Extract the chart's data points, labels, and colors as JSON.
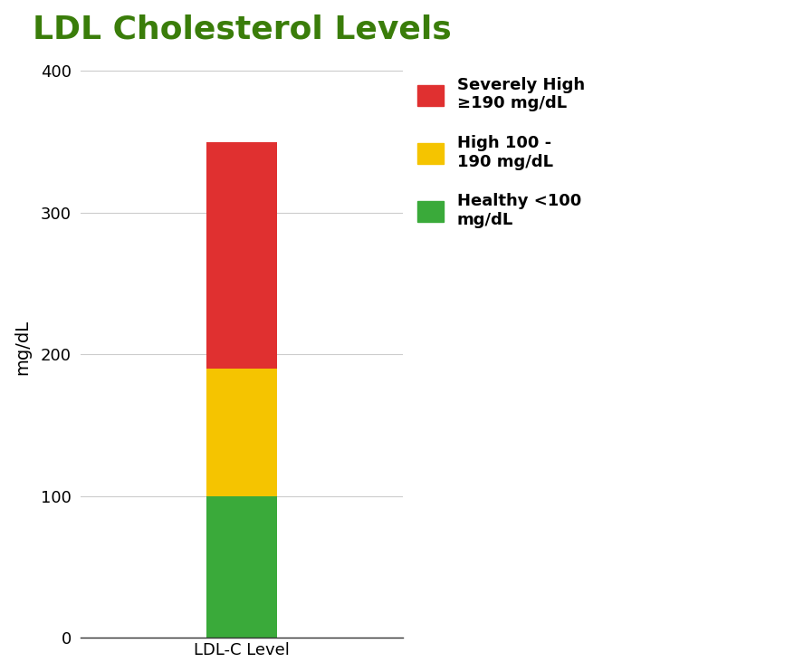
{
  "title": "LDL Cholesterol Levels",
  "title_color": "#3a7d0a",
  "title_fontsize": 26,
  "ylabel": "mg/dL",
  "bar_category": "LDL-C Level",
  "bar_segments": [
    {
      "label": "Healthy <100\nmg/dL",
      "value": 100,
      "color": "#3aaa3a"
    },
    {
      "label": "High 100 -\n190 mg/dL",
      "value": 90,
      "color": "#f5c400"
    },
    {
      "label": "Severely High\n≥190 mg/dL",
      "value": 160,
      "color": "#e03030"
    }
  ],
  "ylim": [
    0,
    410
  ],
  "yticks": [
    0,
    100,
    200,
    300,
    400
  ],
  "background_color": "#ffffff",
  "bar_width": 0.35,
  "legend_fontsize": 13,
  "axis_label_fontsize": 14,
  "tick_fontsize": 13,
  "grid_color": "#cccccc",
  "xlim": [
    -0.8,
    0.8
  ]
}
